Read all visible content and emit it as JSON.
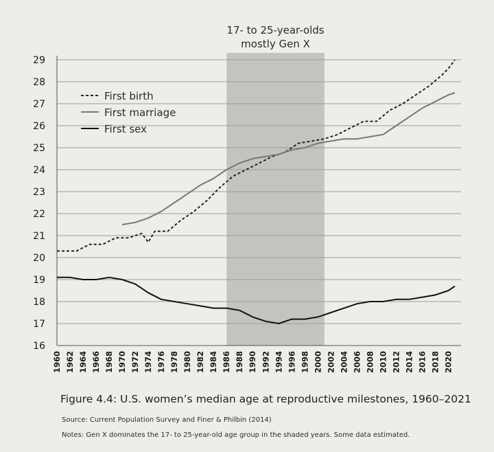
{
  "chart_data": {
    "type": "line",
    "title": "",
    "xlabel": "",
    "ylabel": "",
    "ylim": [
      16,
      29
    ],
    "xlim": [
      1960,
      2021
    ],
    "yticks": [
      16,
      17,
      18,
      19,
      20,
      21,
      22,
      23,
      24,
      25,
      26,
      27,
      28,
      29
    ],
    "xticks": [
      1960,
      1962,
      1964,
      1966,
      1968,
      1970,
      1972,
      1974,
      1976,
      1978,
      1980,
      1982,
      1984,
      1986,
      1988,
      1990,
      1992,
      1994,
      1996,
      1998,
      2000,
      2002,
      2004,
      2006,
      2008,
      2010,
      2012,
      2014,
      2016,
      2018,
      2020
    ],
    "grid": true,
    "legend_position": "top-left",
    "shaded_region": {
      "x_start": 1986,
      "x_end": 2001,
      "label_line1": "17- to 25-year-olds",
      "label_line2": "mostly Gen X"
    },
    "series": [
      {
        "name": "First birth",
        "style": "dashed",
        "color": "#222222",
        "points": [
          [
            1960,
            20.3
          ],
          [
            1963,
            20.3
          ],
          [
            1965,
            20.6
          ],
          [
            1967,
            20.6
          ],
          [
            1969,
            20.9
          ],
          [
            1971,
            20.9
          ],
          [
            1973,
            21.1
          ],
          [
            1974,
            20.7
          ],
          [
            1975,
            21.2
          ],
          [
            1977,
            21.2
          ],
          [
            1979,
            21.7
          ],
          [
            1981,
            22.1
          ],
          [
            1983,
            22.6
          ],
          [
            1985,
            23.2
          ],
          [
            1987,
            23.7
          ],
          [
            1989,
            24.0
          ],
          [
            1991,
            24.3
          ],
          [
            1993,
            24.6
          ],
          [
            1995,
            24.8
          ],
          [
            1997,
            25.2
          ],
          [
            1999,
            25.3
          ],
          [
            2001,
            25.4
          ],
          [
            2003,
            25.6
          ],
          [
            2005,
            25.9
          ],
          [
            2007,
            26.2
          ],
          [
            2009,
            26.2
          ],
          [
            2011,
            26.7
          ],
          [
            2013,
            27.0
          ],
          [
            2015,
            27.4
          ],
          [
            2017,
            27.8
          ],
          [
            2019,
            28.3
          ],
          [
            2020,
            28.6
          ],
          [
            2021,
            29.0
          ]
        ]
      },
      {
        "name": "First marriage",
        "style": "solid",
        "color": "#777777",
        "points": [
          [
            1970,
            21.5
          ],
          [
            1972,
            21.6
          ],
          [
            1974,
            21.8
          ],
          [
            1976,
            22.1
          ],
          [
            1978,
            22.5
          ],
          [
            1980,
            22.9
          ],
          [
            1982,
            23.3
          ],
          [
            1984,
            23.6
          ],
          [
            1986,
            24.0
          ],
          [
            1988,
            24.3
          ],
          [
            1990,
            24.5
          ],
          [
            1992,
            24.6
          ],
          [
            1994,
            24.7
          ],
          [
            1996,
            24.9
          ],
          [
            1998,
            25.0
          ],
          [
            2000,
            25.2
          ],
          [
            2002,
            25.3
          ],
          [
            2004,
            25.4
          ],
          [
            2006,
            25.4
          ],
          [
            2008,
            25.5
          ],
          [
            2010,
            25.6
          ],
          [
            2012,
            26.0
          ],
          [
            2014,
            26.4
          ],
          [
            2016,
            26.8
          ],
          [
            2018,
            27.1
          ],
          [
            2020,
            27.4
          ],
          [
            2021,
            27.5
          ]
        ]
      },
      {
        "name": "First sex",
        "style": "solid",
        "color": "#111111",
        "points": [
          [
            1960,
            19.1
          ],
          [
            1962,
            19.1
          ],
          [
            1964,
            19.0
          ],
          [
            1966,
            19.0
          ],
          [
            1968,
            19.1
          ],
          [
            1970,
            19.0
          ],
          [
            1972,
            18.8
          ],
          [
            1974,
            18.4
          ],
          [
            1976,
            18.1
          ],
          [
            1978,
            18.0
          ],
          [
            1980,
            17.9
          ],
          [
            1982,
            17.8
          ],
          [
            1984,
            17.7
          ],
          [
            1986,
            17.7
          ],
          [
            1988,
            17.6
          ],
          [
            1990,
            17.3
          ],
          [
            1992,
            17.1
          ],
          [
            1994,
            17.0
          ],
          [
            1996,
            17.2
          ],
          [
            1998,
            17.2
          ],
          [
            2000,
            17.3
          ],
          [
            2002,
            17.5
          ],
          [
            2004,
            17.7
          ],
          [
            2006,
            17.9
          ],
          [
            2008,
            18.0
          ],
          [
            2010,
            18.0
          ],
          [
            2012,
            18.1
          ],
          [
            2014,
            18.1
          ],
          [
            2016,
            18.2
          ],
          [
            2018,
            18.3
          ],
          [
            2020,
            18.5
          ],
          [
            2021,
            18.7
          ]
        ]
      }
    ]
  },
  "caption": "Figure 4.4: U.S. women’s median age at reproductive milestones, 1960–2021",
  "source": "Source: Current Population Survey and Finer & Philbin (2014)",
  "notes": "Notes: Gen X dominates the 17- to 25-year-old age group in the shaded years. Some data estimated."
}
